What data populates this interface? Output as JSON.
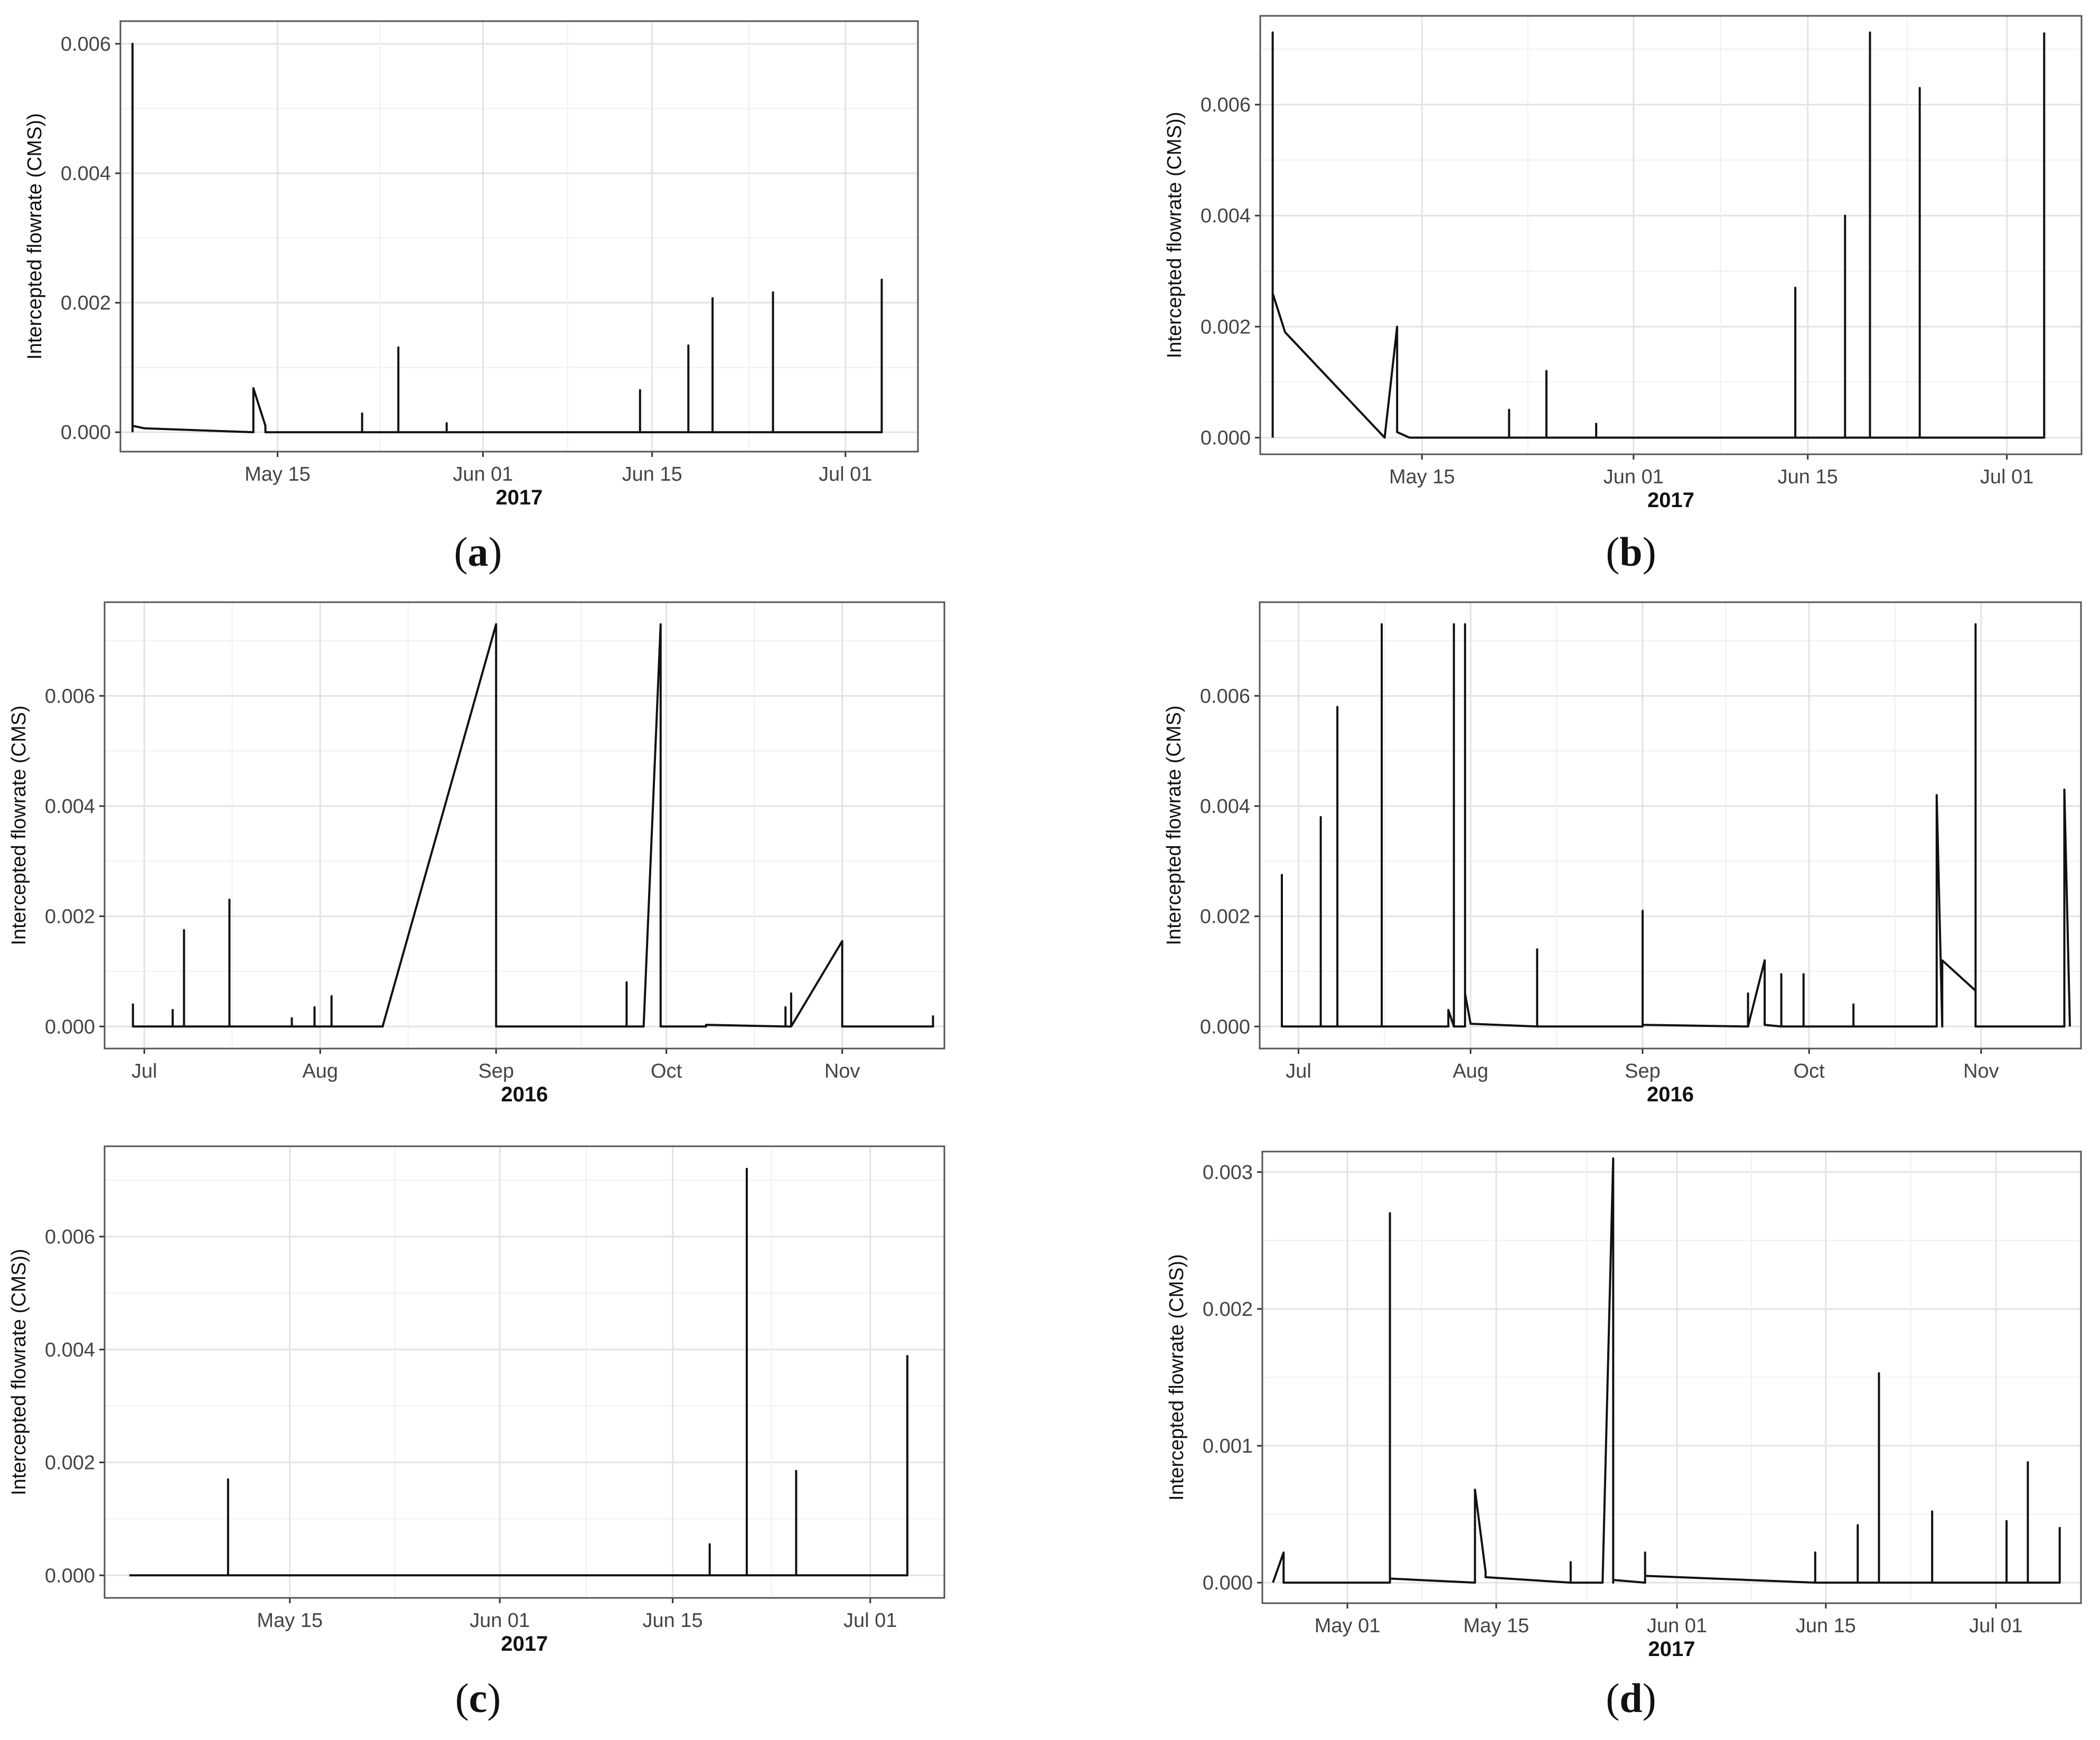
{
  "figure": {
    "panel_labels": {
      "a": "a",
      "b": "b",
      "c": "c",
      "d": "d"
    }
  },
  "chart_data": [
    {
      "id": "a-top",
      "type": "line",
      "ylabel": "Intercepted flowrate (CMS))",
      "xlabel": "2017",
      "x_ticks": [
        "May 15",
        "Jun 01",
        "Jun 15",
        "Jul 01"
      ],
      "y_ticks": [
        "0.000",
        "0.002",
        "0.004",
        "0.006"
      ],
      "ylim": [
        -0.0003,
        0.00635
      ],
      "xlim": [
        "2017-05-02",
        "2017-07-07"
      ],
      "series": [
        {
          "x": [
            "2017-05-03",
            "2017-05-03",
            "2017-05-03",
            "2017-05-04",
            "2017-05-13",
            "2017-05-13",
            "2017-05-14",
            "2017-05-14",
            "2017-05-22",
            "2017-05-22",
            "2017-05-22",
            "2017-05-25",
            "2017-05-25",
            "2017-05-25",
            "2017-05-29",
            "2017-05-29",
            "2017-05-29",
            "2017-06-14",
            "2017-06-14",
            "2017-06-14",
            "2017-06-18",
            "2017-06-18",
            "2017-06-18",
            "2017-06-20",
            "2017-06-20",
            "2017-06-20",
            "2017-06-25",
            "2017-06-25",
            "2017-06-25",
            "2017-07-04",
            "2017-07-04"
          ],
          "y": [
            0.0,
            0.006,
            0.0001,
            6e-05,
            0.0,
            0.00068,
            0.0001,
            0.0,
            0.0,
            0.00029,
            0.0,
            0.0,
            0.00131,
            0.0,
            0.0,
            0.00014,
            0.0,
            0.0,
            0.00065,
            0.0,
            0.0,
            0.00134,
            0.0,
            0.0,
            0.00207,
            0.0,
            0.0,
            0.00216,
            0.0,
            0.0,
            0.00237
          ]
        }
      ]
    },
    {
      "id": "b-top",
      "type": "line",
      "ylabel": "Intercepted flowrate (CMS))",
      "xlabel": "2017",
      "x_ticks": [
        "May 15",
        "Jun 01",
        "Jun 15",
        "Jul 01"
      ],
      "y_ticks": [
        "0.000",
        "0.002",
        "0.004",
        "0.006"
      ],
      "ylim": [
        -0.0003,
        0.0076
      ],
      "xlim": [
        "2017-05-02",
        "2017-07-07"
      ],
      "series": [
        {
          "x": [
            "2017-05-03",
            "2017-05-03",
            "2017-05-03",
            "2017-05-04",
            "2017-05-12",
            "2017-05-13",
            "2017-05-13",
            "2017-05-14",
            "2017-05-22",
            "2017-05-22",
            "2017-05-22",
            "2017-05-25",
            "2017-05-25",
            "2017-05-25",
            "2017-05-29",
            "2017-05-29",
            "2017-05-29",
            "2017-06-14",
            "2017-06-14",
            "2017-06-14",
            "2017-06-18",
            "2017-06-18",
            "2017-06-18",
            "2017-06-20",
            "2017-06-20",
            "2017-06-20",
            "2017-06-24",
            "2017-06-24",
            "2017-06-24",
            "2017-07-04",
            "2017-07-04"
          ],
          "y": [
            0.0,
            0.0073,
            0.0026,
            0.0019,
            0.0,
            0.002,
            0.0001,
            0.0,
            0.0,
            0.0005,
            0.0,
            0.0,
            0.0012,
            0.0,
            0.0,
            0.00025,
            0.0,
            0.0,
            0.0027,
            0.0,
            0.0,
            0.004,
            0.0,
            0.0,
            0.0073,
            0.0,
            0.0,
            0.0063,
            0.0,
            0.0,
            0.0073
          ]
        }
      ]
    },
    {
      "id": "a-bottom",
      "type": "line",
      "ylabel": "Intercepted flowrate (CMS)",
      "xlabel": "2016",
      "x_ticks": [
        "Jul",
        "Aug",
        "Sep",
        "Oct",
        "Nov"
      ],
      "y_ticks": [
        "0.000",
        "0.002",
        "0.004",
        "0.006"
      ],
      "ylim": [
        -0.0004,
        0.0077
      ],
      "xlim": [
        "2016-06-24",
        "2016-11-19"
      ],
      "series": [
        {
          "x": [
            "2016-06-29",
            "2016-06-29",
            "2016-06-29",
            "2016-07-06",
            "2016-07-06",
            "2016-07-06",
            "2016-07-08",
            "2016-07-08",
            "2016-07-08",
            "2016-07-16",
            "2016-07-16",
            "2016-07-16",
            "2016-07-27",
            "2016-07-27",
            "2016-07-27",
            "2016-07-31",
            "2016-07-31",
            "2016-07-31",
            "2016-08-03",
            "2016-08-03",
            "2016-08-03",
            "2016-08-12",
            "2016-09-01",
            "2016-09-01",
            "2016-09-24",
            "2016-09-24",
            "2016-09-24",
            "2016-09-27",
            "2016-09-30",
            "2016-09-30",
            "2016-10-08",
            "2016-10-08",
            "2016-10-22",
            "2016-10-22",
            "2016-10-22",
            "2016-10-23",
            "2016-10-23",
            "2016-10-23",
            "2016-11-01",
            "2016-11-01",
            "2016-11-17",
            "2016-11-17"
          ],
          "y": [
            0.0,
            0.0004,
            0.0,
            0.0,
            0.0003,
            0.0,
            0.0,
            0.00175,
            0.0,
            0.0,
            0.0023,
            0.0,
            0.0,
            0.00015,
            0.0,
            0.0,
            0.00035,
            0.0,
            0.0,
            0.00055,
            0.0,
            0.0,
            0.0073,
            0.0,
            0.0,
            0.0008,
            0.0,
            0.0,
            0.0073,
            0.0,
            0.0,
            3e-05,
            0.0,
            0.00035,
            0.0,
            0.0,
            0.0006,
            0.0,
            0.00155,
            0.0,
            0.0,
            0.0002
          ]
        }
      ]
    },
    {
      "id": "b-bottom",
      "type": "line",
      "ylabel": "Intercepted flowrate (CMS)",
      "xlabel": "2016",
      "x_ticks": [
        "Jul",
        "Aug",
        "Sep",
        "Oct",
        "Nov"
      ],
      "y_ticks": [
        "0.000",
        "0.002",
        "0.004",
        "0.006"
      ],
      "ylim": [
        -0.0004,
        0.0077
      ],
      "xlim": [
        "2016-06-24",
        "2016-11-19"
      ],
      "series": [
        {
          "x": [
            "2016-06-28",
            "2016-06-28",
            "2016-06-28",
            "2016-07-05",
            "2016-07-05",
            "2016-07-05",
            "2016-07-08",
            "2016-07-08",
            "2016-07-08",
            "2016-07-16",
            "2016-07-16",
            "2016-07-16",
            "2016-07-28",
            "2016-07-28",
            "2016-07-29",
            "2016-07-29",
            "2016-07-29",
            "2016-07-31",
            "2016-07-31",
            "2016-07-31",
            "2016-08-01",
            "2016-08-13",
            "2016-08-13",
            "2016-08-13",
            "2016-09-01",
            "2016-09-01",
            "2016-09-01",
            "2016-09-20",
            "2016-09-20",
            "2016-09-20",
            "2016-09-23",
            "2016-09-23",
            "2016-09-26",
            "2016-09-26",
            "2016-09-26",
            "2016-09-30",
            "2016-09-30",
            "2016-09-30",
            "2016-10-09",
            "2016-10-09",
            "2016-10-09",
            "2016-10-24",
            "2016-10-24",
            "2016-10-25",
            "2016-10-25",
            "2016-10-31",
            "2016-10-31",
            "2016-10-31",
            "2016-11-16",
            "2016-11-16",
            "2016-11-17"
          ],
          "y": [
            0.0,
            0.00275,
            0.0,
            0.0,
            0.0038,
            0.0,
            0.0,
            0.0058,
            0.0,
            0.0,
            0.0073,
            0.0,
            0.0,
            0.0003,
            0.0,
            0.0073,
            0.0,
            0.0,
            0.0073,
            0.0006,
            5e-05,
            0.0,
            0.0014,
            0.0,
            0.0,
            0.0021,
            3e-05,
            0.0,
            0.0006,
            0.0,
            0.0012,
            3e-05,
            0.0,
            0.00095,
            0.0,
            0.0,
            0.00095,
            0.0,
            0.0,
            0.0004,
            0.0,
            0.0,
            0.0042,
            0.0,
            0.0012,
            0.00065,
            0.0073,
            0.0,
            0.0,
            0.0043,
            0.0
          ]
        }
      ]
    },
    {
      "id": "c",
      "type": "line",
      "ylabel": "Intercepted flowrate (CMS))",
      "xlabel": "2017",
      "x_ticks": [
        "May 15",
        "Jun 01",
        "Jun 15",
        "Jul 01"
      ],
      "y_ticks": [
        "0.000",
        "0.002",
        "0.004",
        "0.006"
      ],
      "ylim": [
        -0.0004,
        0.0076
      ],
      "xlim": [
        "2017-04-30",
        "2017-07-07"
      ],
      "series": [
        {
          "x": [
            "2017-05-02",
            "2017-05-10",
            "2017-05-10",
            "2017-05-10",
            "2017-05-11",
            "2017-06-18",
            "2017-06-18",
            "2017-06-18",
            "2017-06-21",
            "2017-06-21",
            "2017-06-21",
            "2017-06-25",
            "2017-06-25",
            "2017-06-25",
            "2017-07-04",
            "2017-07-04"
          ],
          "y": [
            0.0,
            0.0,
            0.0017,
            0.0,
            0.0,
            0.0,
            0.00055,
            0.0,
            0.0,
            0.0072,
            0.0,
            0.0,
            0.00185,
            0.0,
            0.0,
            0.0039
          ]
        }
      ]
    },
    {
      "id": "d",
      "type": "line",
      "ylabel": "Intercepted flowrate (CMS))",
      "xlabel": "2017",
      "x_ticks": [
        "May 01",
        "May 15",
        "Jun 01",
        "Jun 15",
        "Jul 01"
      ],
      "y_ticks": [
        "0.000",
        "0.001",
        "0.002",
        "0.003"
      ],
      "ylim": [
        -0.00015,
        0.00315
      ],
      "xlim": [
        "2017-04-23",
        "2017-07-09"
      ],
      "series": [
        {
          "x": [
            "2017-04-24",
            "2017-04-25",
            "2017-04-25",
            "2017-05-05",
            "2017-05-05",
            "2017-05-05",
            "2017-05-13",
            "2017-05-13",
            "2017-05-14",
            "2017-05-14",
            "2017-05-22",
            "2017-05-22",
            "2017-05-22",
            "2017-05-25",
            "2017-05-26",
            "2017-05-26",
            "2017-05-26",
            "2017-05-29",
            "2017-05-29",
            "2017-05-29",
            "2017-06-14",
            "2017-06-14",
            "2017-06-14",
            "2017-06-18",
            "2017-06-18",
            "2017-06-18",
            "2017-06-20",
            "2017-06-20",
            "2017-06-20",
            "2017-06-25",
            "2017-06-25",
            "2017-06-25",
            "2017-07-02",
            "2017-07-02",
            "2017-07-02",
            "2017-07-04",
            "2017-07-04",
            "2017-07-04",
            "2017-07-07",
            "2017-07-07",
            "2017-07-07"
          ],
          "y": [
            0.0,
            0.00022,
            0.0,
            0.0,
            0.0027,
            3e-05,
            0.0,
            0.00068,
            8e-05,
            4e-05,
            0.0,
            0.00015,
            0.0,
            0.0,
            0.0031,
            0.0,
            2e-05,
            0.0,
            0.00022,
            5e-05,
            0.0,
            0.00022,
            0.0,
            0.0,
            0.00042,
            0.0,
            0.0,
            0.00153,
            0.0,
            0.0,
            0.00052,
            0.0,
            0.0,
            0.00045,
            0.0,
            0.0,
            0.00088,
            0.0,
            0.0,
            0.0004,
            0.0
          ]
        }
      ]
    }
  ]
}
